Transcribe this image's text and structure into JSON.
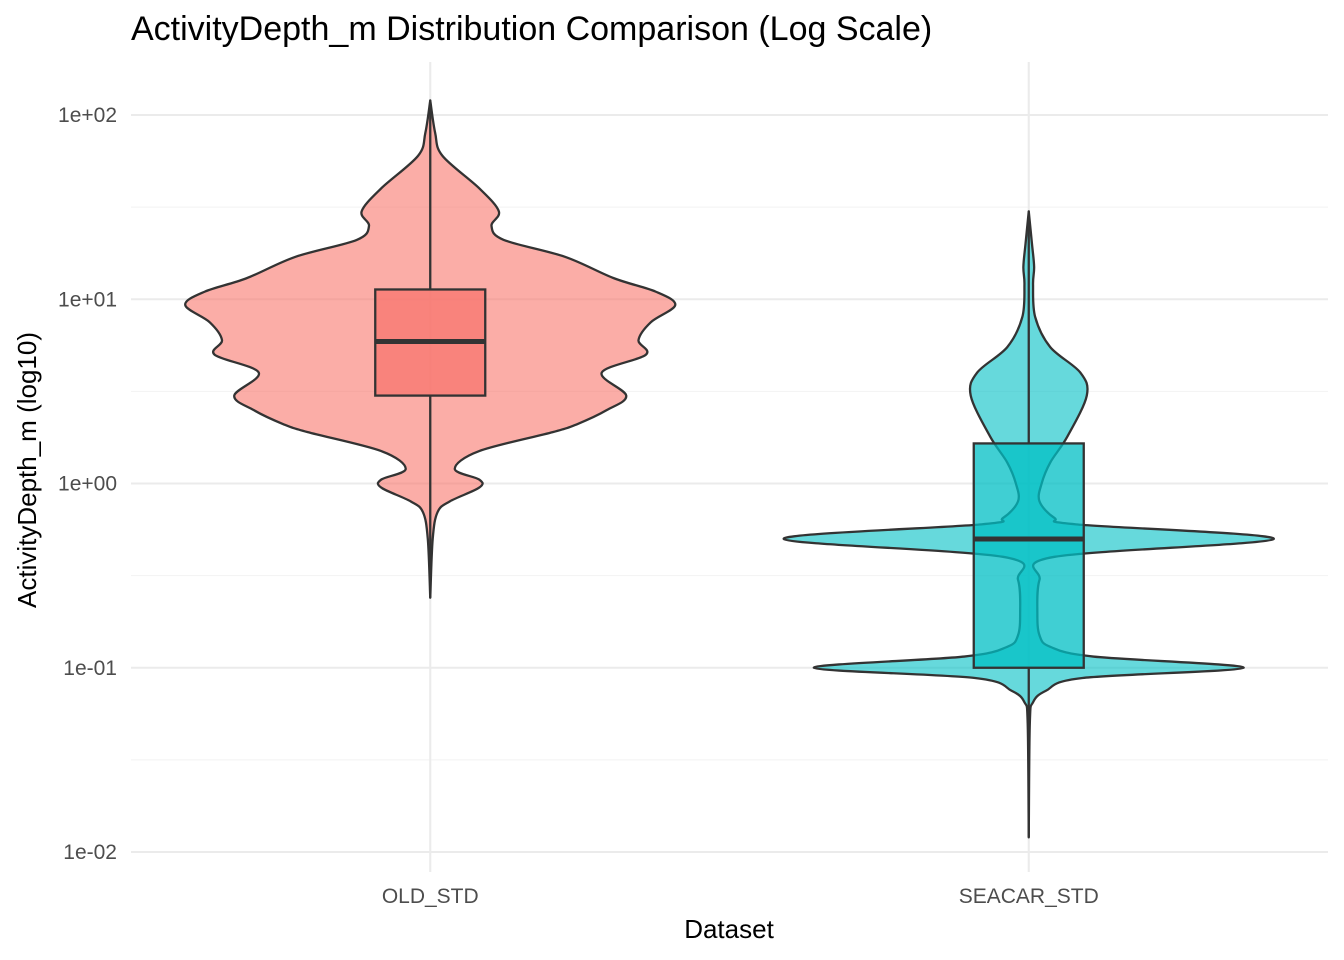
{
  "chart_data": {
    "type": "violin",
    "title": "ActivityDepth_m Distribution Comparison (Log Scale)",
    "xlabel": "Dataset",
    "ylabel": "ActivityDepth_m (log10)",
    "y_scale": "log10",
    "ylim": [
      0.01,
      100
    ],
    "y_ticks": [
      0.01,
      0.1,
      1,
      10,
      100
    ],
    "y_tick_labels": [
      "1e-02",
      "1e-01",
      "1e+00",
      "1e+01",
      "1e+02"
    ],
    "categories": [
      "OLD_STD",
      "SEACAR_STD"
    ],
    "grid": true,
    "legend": "none",
    "series": [
      {
        "category": "OLD_STD",
        "color": "#F8766D",
        "min": 0.24,
        "max": 120,
        "box": {
          "q1": 3.0,
          "median": 5.9,
          "q3": 11.3
        },
        "density": [
          [
            0.24,
            0.0
          ],
          [
            0.5,
            0.01
          ],
          [
            0.7,
            0.03
          ],
          [
            0.8,
            0.08
          ],
          [
            0.95,
            0.2
          ],
          [
            1.05,
            0.2
          ],
          [
            1.2,
            0.1
          ],
          [
            1.5,
            0.2
          ],
          [
            1.9,
            0.5
          ],
          [
            2.1,
            0.6
          ],
          [
            2.5,
            0.72
          ],
          [
            3.0,
            0.8
          ],
          [
            4.0,
            0.7
          ],
          [
            5.0,
            0.88
          ],
          [
            6.0,
            0.85
          ],
          [
            7.5,
            0.9
          ],
          [
            9.3,
            1.0
          ],
          [
            11.0,
            0.92
          ],
          [
            13.0,
            0.75
          ],
          [
            17.0,
            0.55
          ],
          [
            21.0,
            0.3
          ],
          [
            25.0,
            0.25
          ],
          [
            30.0,
            0.28
          ],
          [
            40.0,
            0.2
          ],
          [
            60.0,
            0.05
          ],
          [
            80.0,
            0.02
          ],
          [
            120.0,
            0.0
          ]
        ]
      },
      {
        "category": "SEACAR_STD",
        "color": "#00BFC4",
        "min": 0.012,
        "max": 30,
        "box": {
          "q1": 0.1,
          "median": 0.5,
          "q3": 1.65
        },
        "density": [
          [
            0.012,
            0.0
          ],
          [
            0.05,
            0.005
          ],
          [
            0.065,
            0.02
          ],
          [
            0.075,
            0.08
          ],
          [
            0.088,
            0.25
          ],
          [
            0.1,
            1.0
          ],
          [
            0.115,
            0.3
          ],
          [
            0.13,
            0.1
          ],
          [
            0.15,
            0.05
          ],
          [
            0.2,
            0.04
          ],
          [
            0.3,
            0.05
          ],
          [
            0.4,
            0.12
          ],
          [
            0.5,
            1.14
          ],
          [
            0.6,
            0.22
          ],
          [
            0.65,
            0.12
          ],
          [
            0.8,
            0.05
          ],
          [
            1.0,
            0.06
          ],
          [
            1.3,
            0.1
          ],
          [
            1.8,
            0.18
          ],
          [
            3.0,
            0.27
          ],
          [
            4.0,
            0.24
          ],
          [
            5.5,
            0.1
          ],
          [
            8.0,
            0.03
          ],
          [
            12.0,
            0.02
          ],
          [
            15.0,
            0.025
          ],
          [
            20.0,
            0.015
          ],
          [
            30.0,
            0.0
          ]
        ]
      }
    ]
  }
}
